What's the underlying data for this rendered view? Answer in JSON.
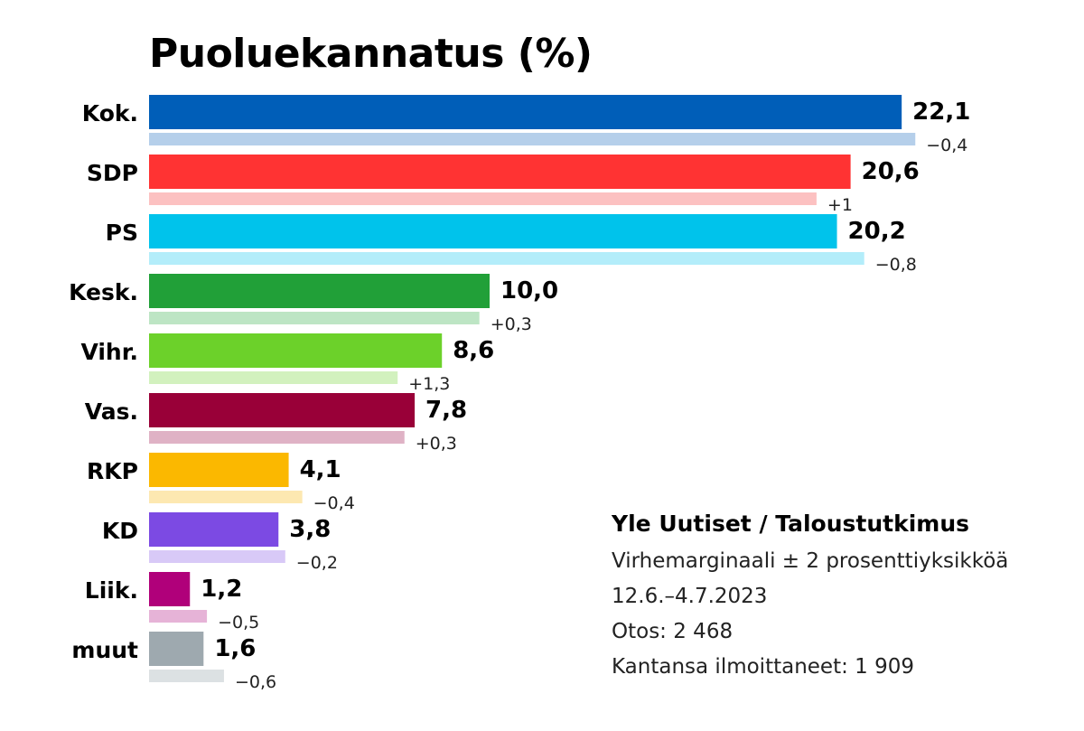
{
  "chart_data": {
    "type": "bar",
    "title": "Puoluekannatus (%)",
    "categories": [
      "Kok.",
      "SDP",
      "PS",
      "Kesk.",
      "Vihr.",
      "Vas.",
      "RKP",
      "KD",
      "Liik.",
      "muut"
    ],
    "values": [
      22.1,
      20.6,
      20.2,
      10.0,
      8.6,
      7.8,
      4.1,
      3.8,
      1.2,
      1.6
    ],
    "value_labels": [
      "22,1",
      "20,6",
      "20,2",
      "10,0",
      "8,6",
      "7,8",
      "4,1",
      "3,8",
      "1,2",
      "1,6"
    ],
    "changes": [
      -0.4,
      1.0,
      -0.8,
      0.3,
      1.3,
      0.3,
      -0.4,
      -0.2,
      -0.5,
      -0.6
    ],
    "change_labels": [
      "−0,4",
      "+1",
      "−0,8",
      "+0,3",
      "+1,3",
      "+0,3",
      "−0,4",
      "−0,2",
      "−0,5",
      "−0,6"
    ],
    "colors": [
      "#005EB8",
      "#FF3333",
      "#00C3EB",
      "#21A038",
      "#6CD12A",
      "#990038",
      "#FBB800",
      "#7C4AE3",
      "#B0007A",
      "#9EA9AF"
    ],
    "previous_colors": [
      "#B5CFEA",
      "#FCC1C1",
      "#B3EDFA",
      "#BDE5C4",
      "#D2F1BE",
      "#DFB2C5",
      "#FDE8B1",
      "#D8C9F7",
      "#E6B3D7",
      "#DCE1E3"
    ],
    "series": [
      {
        "name": "current",
        "values": [
          22.1,
          20.6,
          20.2,
          10.0,
          8.6,
          7.8,
          4.1,
          3.8,
          1.2,
          1.6
        ]
      },
      {
        "name": "previous",
        "values": [
          22.5,
          19.6,
          21.0,
          9.7,
          7.3,
          7.5,
          4.5,
          4.0,
          1.7,
          2.2
        ]
      }
    ],
    "xlim": [
      0,
      23
    ]
  },
  "info": {
    "source": "Yle Uutiset / Taloustutkimus",
    "margin_of_error": "Virhemarginaali ± 2 prosenttiyksikköä",
    "period": "12.6.–4.7.2023",
    "sample": "Otos: 2 468",
    "respondents": "Kantansa ilmoittaneet: 1 909"
  }
}
